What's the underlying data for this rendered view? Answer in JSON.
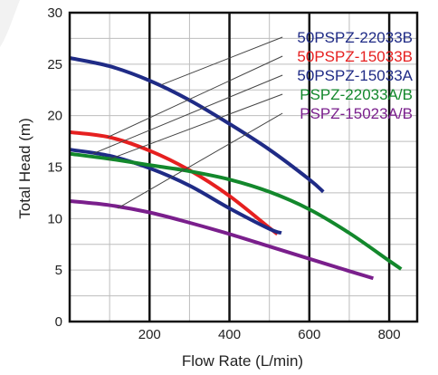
{
  "chart_data": {
    "type": "line",
    "xlabel": "Flow Rate (L/min)",
    "ylabel": "Total Head (m)",
    "xlim": [
      0,
      870
    ],
    "ylim": [
      0,
      30
    ],
    "xticks": [
      200,
      400,
      600,
      800
    ],
    "yticks": [
      0,
      5,
      10,
      15,
      20,
      25,
      30
    ],
    "x_tick_labels": [
      "200",
      "400",
      "600",
      "800"
    ],
    "y_tick_labels": [
      "0",
      "5",
      "10",
      "15",
      "20",
      "25",
      "30"
    ],
    "grid": true,
    "legend_placement": "top-right",
    "series": [
      {
        "name": "50PSPZ-22033B",
        "color": "#1f2b86",
        "x": [
          0,
          100,
          200,
          300,
          400,
          500,
          600,
          635
        ],
        "y": [
          25.6,
          24.8,
          23.4,
          21.5,
          19.2,
          16.7,
          13.8,
          12.6
        ]
      },
      {
        "name": "50PSPZ-15033B",
        "color": "#e62020",
        "x": [
          0,
          100,
          200,
          300,
          400,
          500,
          520
        ],
        "y": [
          18.4,
          17.9,
          16.6,
          14.7,
          12.2,
          9.1,
          8.5
        ]
      },
      {
        "name": "50PSPZ-15033A",
        "color": "#1f2b86",
        "x": [
          0,
          100,
          200,
          300,
          400,
          500,
          530
        ],
        "y": [
          16.7,
          16.1,
          14.9,
          13.2,
          11.0,
          9.0,
          8.6
        ]
      },
      {
        "name": "PSPZ-22033A/B",
        "color": "#13882c",
        "x": [
          0,
          100,
          200,
          300,
          400,
          500,
          600,
          700,
          800,
          830
        ],
        "y": [
          16.3,
          15.8,
          15.2,
          14.6,
          13.8,
          12.6,
          10.9,
          8.6,
          5.9,
          5.1
        ]
      },
      {
        "name": "PSPZ-15023A/B",
        "color": "#7a1f8c",
        "x": [
          0,
          100,
          200,
          300,
          400,
          500,
          600,
          700,
          760
        ],
        "y": [
          11.7,
          11.3,
          10.6,
          9.6,
          8.5,
          7.3,
          6.1,
          4.9,
          4.2
        ]
      }
    ]
  },
  "ui": {
    "frame_color": "#111111",
    "grid_color": "#bdbdbd",
    "major_grid_color": "#111111",
    "leader_color": "#444444"
  }
}
